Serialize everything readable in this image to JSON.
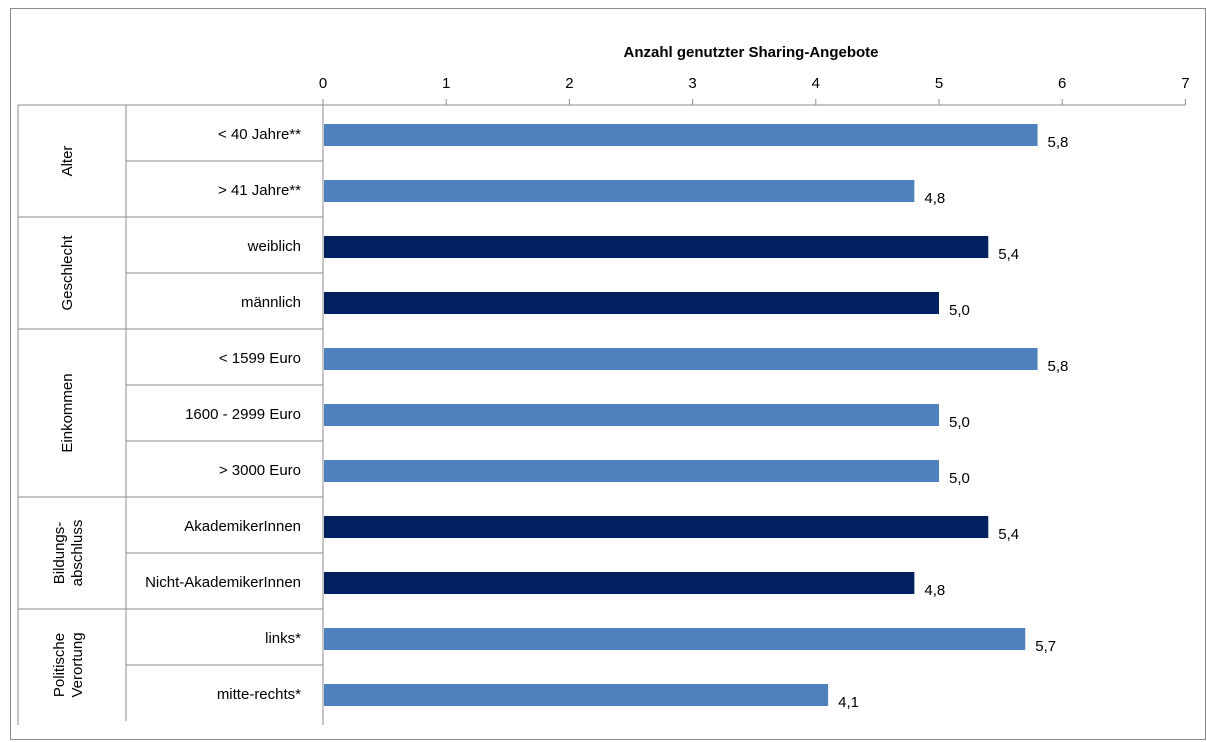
{
  "chart_data": {
    "type": "bar",
    "orientation": "horizontal",
    "title": "Anzahl genutzter Sharing-Angebote",
    "xlim": [
      0,
      7
    ],
    "x_ticks": [
      "0",
      "1",
      "2",
      "3",
      "4",
      "5",
      "6",
      "7"
    ],
    "axis_position": "top",
    "grid": false,
    "legend": "none",
    "colors": {
      "light": "#4f81bd",
      "dark": "#002060"
    },
    "groups": [
      {
        "label": [
          "Alter"
        ],
        "bars": [
          {
            "category": "< 40 Jahre**",
            "value": 5.8,
            "label": "5,8",
            "color": "light"
          },
          {
            "category": "> 41 Jahre**",
            "value": 4.8,
            "label": "4,8",
            "color": "light"
          }
        ]
      },
      {
        "label": [
          "Geschlecht"
        ],
        "bars": [
          {
            "category": "weiblich",
            "value": 5.4,
            "label": "5,4",
            "color": "dark"
          },
          {
            "category": "männlich",
            "value": 5.0,
            "label": "5,0",
            "color": "dark"
          }
        ]
      },
      {
        "label": [
          "Einkommen"
        ],
        "bars": [
          {
            "category": "< 1599 Euro",
            "value": 5.8,
            "label": "5,8",
            "color": "light"
          },
          {
            "category": "1600 - 2999 Euro",
            "value": 5.0,
            "label": "5,0",
            "color": "light"
          },
          {
            "category": "> 3000 Euro",
            "value": 5.0,
            "label": "5,0",
            "color": "light"
          }
        ]
      },
      {
        "label": [
          "Bildungs-",
          "abschluss"
        ],
        "bars": [
          {
            "category": "AkademikerInnen",
            "value": 5.4,
            "label": "5,4",
            "color": "dark"
          },
          {
            "category": "Nicht-AkademikerInnen",
            "value": 4.8,
            "label": "4,8",
            "color": "dark"
          }
        ]
      },
      {
        "label": [
          "Politische",
          "Verortung"
        ],
        "bars": [
          {
            "category": "links*",
            "value": 5.7,
            "label": "5,7",
            "color": "light"
          },
          {
            "category": "mitte-rechts*",
            "value": 4.1,
            "label": "4,1",
            "color": "light"
          }
        ]
      }
    ]
  }
}
